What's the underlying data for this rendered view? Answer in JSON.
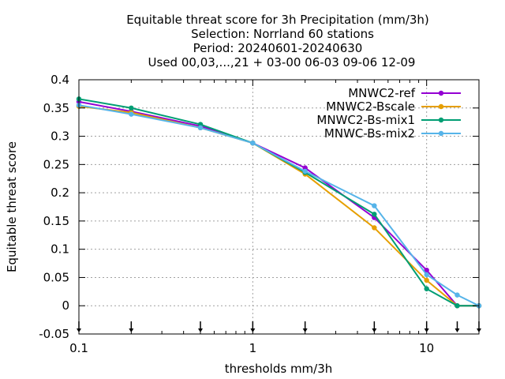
{
  "chart_data": {
    "type": "line",
    "title_lines": [
      "Equitable threat score  for 3h Precipitation (mm/3h)",
      "Selection: Norrland     60 stations",
      "Period: 20240601-20240630",
      "Used 00,03,...,21 + 03-00 06-03 09-06 12-09"
    ],
    "xlabel": "thresholds mm/3h",
    "ylabel": "Equitable threat score",
    "x_scale": "log",
    "xlim": [
      0.1,
      20
    ],
    "ylim": [
      -0.05,
      0.4
    ],
    "x_ticks": [
      {
        "value": 0.1,
        "label": "0.1"
      },
      {
        "value": 1,
        "label": "1"
      },
      {
        "value": 10,
        "label": "10"
      }
    ],
    "y_ticks": [
      {
        "value": 0.4,
        "label": "0.4"
      },
      {
        "value": 0.35,
        "label": "0.35"
      },
      {
        "value": 0.3,
        "label": "0.3"
      },
      {
        "value": 0.25,
        "label": "0.25"
      },
      {
        "value": 0.2,
        "label": "0.2"
      },
      {
        "value": 0.15,
        "label": "0.15"
      },
      {
        "value": 0.1,
        "label": "0.1"
      },
      {
        "value": 0.05,
        "label": "0.05"
      },
      {
        "value": 0,
        "label": "0"
      },
      {
        "value": -0.05,
        "label": "-0.05"
      }
    ],
    "threshold_markers": [
      0.1,
      0.2,
      0.5,
      1,
      2,
      5,
      10,
      15,
      20
    ],
    "grid": true,
    "legend_position": "top-right",
    "x": [
      0.1,
      0.2,
      0.5,
      1,
      2,
      5,
      10,
      15,
      20
    ],
    "series": [
      {
        "name": "MNWC2-ref",
        "color": "#9400d3",
        "values": [
          0.361,
          0.344,
          0.318,
          0.288,
          0.244,
          0.156,
          0.063,
          0.0,
          0.0
        ]
      },
      {
        "name": "MNWC2-Bscale",
        "color": "#e69f00",
        "values": [
          0.353,
          0.342,
          0.315,
          0.288,
          0.233,
          0.138,
          0.045,
          0.0,
          0.0
        ]
      },
      {
        "name": "MNWC2-Bs-mix1",
        "color": "#009e73",
        "values": [
          0.366,
          0.35,
          0.321,
          0.288,
          0.236,
          0.162,
          0.03,
          0.0,
          0.0
        ]
      },
      {
        "name": "MNWC-Bs-mix2",
        "color": "#56b4e9",
        "values": [
          0.355,
          0.339,
          0.315,
          0.288,
          0.238,
          0.177,
          0.055,
          0.019,
          0.0
        ]
      }
    ]
  }
}
